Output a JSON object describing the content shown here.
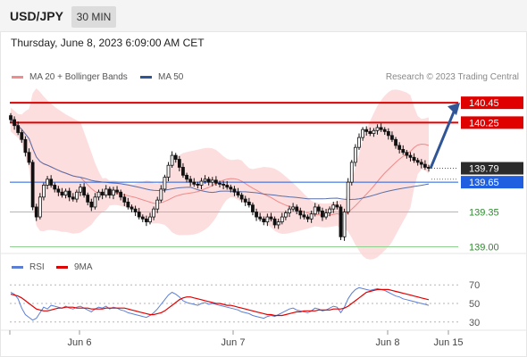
{
  "header": {
    "pair": "USD/JPY",
    "timeframe": "30 MIN"
  },
  "datetime": "Thursday, June 8, 2023 6:09:00 AM CET",
  "credit": "Research © 2023 Trading Central",
  "legend": {
    "bollinger": {
      "label": "MA 20 + Bollinger Bands",
      "color": "#f28b8b"
    },
    "ma50": {
      "label": "MA 50",
      "color": "#2f5597"
    },
    "rsi": {
      "label": "RSI",
      "color": "#5b7fd6"
    },
    "rsi_ma": {
      "label": "9MA",
      "color": "#e00000"
    }
  },
  "chart_data": [
    {
      "type": "candlestick",
      "ylim": [
        138.95,
        140.55
      ],
      "x_ticks": [
        "Jun 6",
        "Jun 7",
        "Jun 8",
        "Jun 15"
      ],
      "last_price": 139.79,
      "levels": [
        {
          "label": "140.45",
          "value": 140.45,
          "kind": "resistance",
          "color": "#e00000"
        },
        {
          "label": "140.25",
          "value": 140.25,
          "kind": "resistance",
          "color": "#e00000"
        },
        {
          "label": "139.79",
          "value": 139.79,
          "kind": "last",
          "color": "#222222"
        },
        {
          "label": "139.65",
          "value": 139.65,
          "kind": "pivot",
          "color": "#1f5fe0"
        },
        {
          "label": "139.35",
          "value": 139.35,
          "kind": "support",
          "color": "#2e8b2e"
        },
        {
          "label": "139.00",
          "value": 139.0,
          "kind": "support",
          "color": "#2e8b2e"
        }
      ],
      "forecast": {
        "from": 139.79,
        "to": 140.45,
        "color": "#2f5597"
      },
      "close": [
        140.28,
        140.22,
        140.15,
        140.08,
        139.95,
        139.85,
        139.4,
        139.3,
        139.5,
        139.62,
        139.68,
        139.62,
        139.58,
        139.55,
        139.52,
        139.56,
        139.5,
        139.48,
        139.55,
        139.6,
        139.52,
        139.45,
        139.4,
        139.5,
        139.55,
        139.52,
        139.58,
        139.52,
        139.57,
        139.55,
        139.5,
        139.45,
        139.4,
        139.38,
        139.35,
        139.3,
        139.28,
        139.25,
        139.3,
        139.38,
        139.47,
        139.58,
        139.7,
        139.82,
        139.92,
        139.88,
        139.8,
        139.72,
        139.68,
        139.65,
        139.63,
        139.62,
        139.66,
        139.68,
        139.65,
        139.67,
        139.64,
        139.63,
        139.62,
        139.6,
        139.58,
        139.55,
        139.52,
        139.48,
        139.45,
        139.42,
        139.35,
        139.3,
        139.28,
        139.25,
        139.3,
        139.28,
        139.22,
        139.25,
        139.3,
        139.34,
        139.38,
        139.4,
        139.36,
        139.32,
        139.3,
        139.28,
        139.33,
        139.4,
        139.36,
        139.3,
        139.34,
        139.38,
        139.42,
        139.4,
        139.1,
        139.35,
        139.65,
        139.85,
        140.0,
        140.1,
        140.18,
        140.16,
        140.14,
        140.17,
        140.2,
        140.18,
        140.16,
        140.12,
        140.08,
        140.02,
        139.98,
        139.95,
        139.92,
        139.9,
        139.87,
        139.85,
        139.83,
        139.8,
        139.79
      ]
    },
    {
      "type": "line",
      "name": "RSI",
      "ylim": [
        25,
        75
      ],
      "y_ticks": [
        "70",
        "50",
        "30"
      ],
      "series": [
        {
          "name": "RSI",
          "color": "#5b7fd6",
          "values": [
            62,
            60,
            55,
            45,
            38,
            35,
            32,
            34,
            40,
            46,
            44,
            48,
            47,
            46,
            45,
            47,
            45,
            44,
            46,
            47,
            45,
            43,
            41,
            44,
            46,
            45,
            47,
            44,
            46,
            45,
            43,
            42,
            40,
            39,
            38,
            37,
            36,
            35,
            37,
            40,
            44,
            49,
            54,
            59,
            62,
            60,
            57,
            53,
            51,
            50,
            49,
            48,
            50,
            51,
            49,
            50,
            49,
            48,
            47,
            46,
            45,
            44,
            43,
            41,
            40,
            39,
            37,
            36,
            35,
            34,
            36,
            37,
            36,
            38,
            40,
            42,
            44,
            45,
            43,
            42,
            41,
            40,
            42,
            45,
            44,
            42,
            43,
            45,
            47,
            46,
            40,
            46,
            55,
            61,
            65,
            67,
            66,
            65,
            64,
            65,
            66,
            65,
            64,
            62,
            60,
            58,
            57,
            55,
            54,
            53,
            52,
            51,
            50,
            49,
            48
          ]
        },
        {
          "name": "9MA",
          "color": "#e00000",
          "values": [
            60,
            59,
            58,
            56,
            53,
            50,
            47,
            44,
            43,
            42,
            42,
            43,
            44,
            45,
            45,
            46,
            46,
            46,
            45,
            45,
            45,
            45,
            44,
            44,
            44,
            44,
            45,
            45,
            45,
            45,
            45,
            45,
            44,
            43,
            42,
            41,
            40,
            39,
            38,
            38,
            39,
            40,
            42,
            45,
            48,
            51,
            54,
            56,
            57,
            57,
            56,
            55,
            54,
            53,
            52,
            51,
            50,
            50,
            49,
            48,
            48,
            47,
            46,
            45,
            44,
            43,
            42,
            41,
            40,
            39,
            38,
            38,
            37,
            37,
            37,
            38,
            39,
            40,
            41,
            41,
            42,
            42,
            42,
            42,
            43,
            43,
            43,
            43,
            44,
            44,
            44,
            45,
            47,
            50,
            53,
            56,
            59,
            62,
            63,
            64,
            65,
            65,
            65,
            65,
            64,
            63,
            62,
            61,
            60,
            59,
            58,
            57,
            56,
            55,
            54
          ]
        }
      ]
    }
  ]
}
